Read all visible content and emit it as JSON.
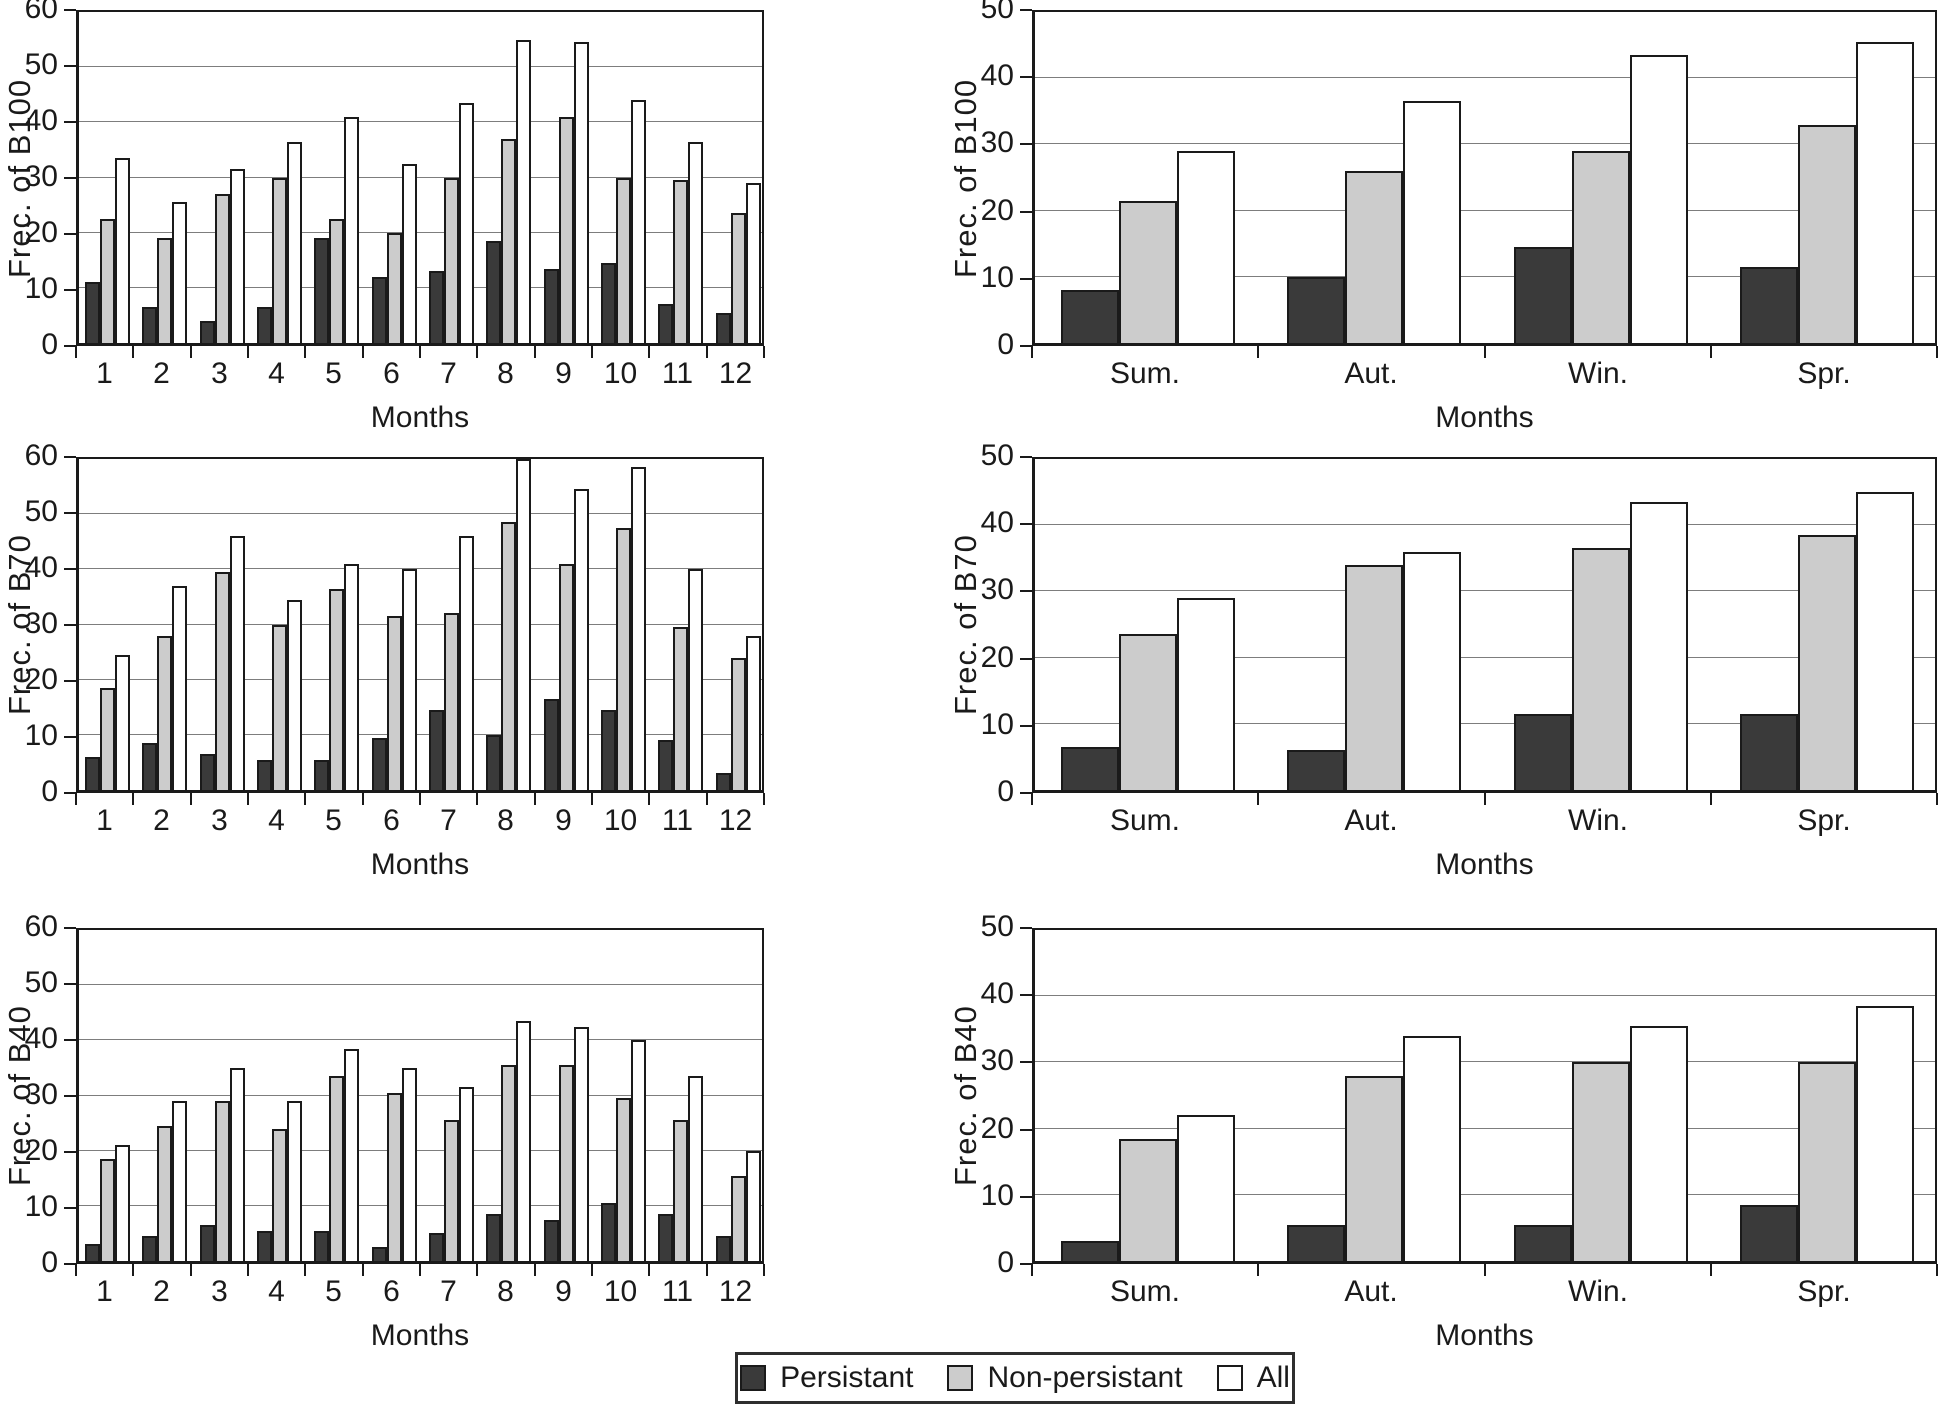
{
  "figure": {
    "x_axis_title": "Months",
    "background": "#ffffff"
  },
  "colors": {
    "persistant": "#3a3a3a",
    "non_persistant": "#cccccc",
    "all": "#ffffff",
    "bar_outline": "#1a1a1a",
    "gridline": "#7d7d7d",
    "axis": "#1a1a1a",
    "text": "#1a1a1a"
  },
  "legend": {
    "position": "bottom-center",
    "items": [
      {
        "label": "Persistant",
        "swatch": "#3a3a3a"
      },
      {
        "label": "Non-persistant",
        "swatch": "#cccccc"
      },
      {
        "label": "All",
        "swatch": "#ffffff"
      }
    ]
  },
  "chart_data": [
    {
      "id": "b100-monthly",
      "type": "bar",
      "title": "",
      "ylabel": "Frec. of B100",
      "xlabel": "Months",
      "ylim": [
        0,
        60
      ],
      "yticks": [
        0,
        10,
        20,
        30,
        40,
        50,
        60
      ],
      "grid": true,
      "categories": [
        "1",
        "2",
        "3",
        "4",
        "5",
        "6",
        "7",
        "8",
        "9",
        "10",
        "11",
        "12"
      ],
      "series": [
        {
          "name": "Persistant",
          "values": [
            11,
            6.5,
            4,
            6.5,
            19,
            12,
            13,
            18.5,
            13.5,
            14.5,
            7,
            5.5
          ]
        },
        {
          "name": "Non-persistant",
          "values": [
            22.5,
            19,
            27,
            30,
            22.5,
            20,
            30,
            37,
            41,
            30,
            29.5,
            23.5
          ]
        },
        {
          "name": "All",
          "values": [
            33.5,
            25.5,
            31.5,
            36.5,
            41,
            32.5,
            43.5,
            55,
            54.5,
            44,
            36.5,
            29
          ]
        }
      ]
    },
    {
      "id": "b100-seasonal",
      "type": "bar",
      "title": "",
      "ylabel": "Frec. of B100",
      "xlabel": "Months",
      "ylim": [
        0,
        50
      ],
      "yticks": [
        0,
        10,
        20,
        30,
        40,
        50
      ],
      "grid": true,
      "categories": [
        "Sum.",
        "Aut.",
        "Win.",
        "Spr."
      ],
      "series": [
        {
          "name": "Persistant",
          "values": [
            8,
            10,
            14.5,
            11.5
          ]
        },
        {
          "name": "Non-persistant",
          "values": [
            21.5,
            26,
            29,
            33
          ]
        },
        {
          "name": "All",
          "values": [
            29,
            36.5,
            43.5,
            45.5
          ]
        }
      ]
    },
    {
      "id": "b70-monthly",
      "type": "bar",
      "title": "",
      "ylabel": "Frec. of B70",
      "xlabel": "Months",
      "ylim": [
        0,
        60
      ],
      "yticks": [
        0,
        10,
        20,
        30,
        40,
        50,
        60
      ],
      "grid": true,
      "categories": [
        "1",
        "2",
        "3",
        "4",
        "5",
        "6",
        "7",
        "8",
        "9",
        "10",
        "11",
        "12"
      ],
      "series": [
        {
          "name": "Persistant",
          "values": [
            6,
            8.5,
            6.5,
            5.5,
            5.5,
            9.5,
            14.5,
            10,
            16.5,
            14.5,
            9,
            3
          ]
        },
        {
          "name": "Non-persistant",
          "values": [
            18.5,
            28,
            39.5,
            30,
            36.5,
            31.5,
            32,
            48.5,
            41,
            47.5,
            29.5,
            24
          ]
        },
        {
          "name": "All",
          "values": [
            24.5,
            37,
            46,
            34.5,
            41,
            40,
            46,
            60,
            54.5,
            58.5,
            40,
            28
          ]
        }
      ]
    },
    {
      "id": "b70-seasonal",
      "type": "bar",
      "title": "",
      "ylabel": "Frec. of B70",
      "xlabel": "Months",
      "ylim": [
        0,
        50
      ],
      "yticks": [
        0,
        10,
        20,
        30,
        40,
        50
      ],
      "grid": true,
      "categories": [
        "Sum.",
        "Aut.",
        "Win.",
        "Spr."
      ],
      "series": [
        {
          "name": "Persistant",
          "values": [
            6.5,
            6,
            11.5,
            11.5
          ]
        },
        {
          "name": "Non-persistant",
          "values": [
            23.5,
            34,
            36.5,
            38.5
          ]
        },
        {
          "name": "All",
          "values": [
            29,
            36,
            43.5,
            45
          ]
        }
      ]
    },
    {
      "id": "b40-monthly",
      "type": "bar",
      "title": "",
      "ylabel": "Frec. of B40",
      "xlabel": "Months",
      "ylim": [
        0,
        60
      ],
      "yticks": [
        0,
        10,
        20,
        30,
        40,
        50,
        60
      ],
      "grid": true,
      "categories": [
        "1",
        "2",
        "3",
        "4",
        "5",
        "6",
        "7",
        "8",
        "9",
        "10",
        "11",
        "12"
      ],
      "series": [
        {
          "name": "Persistant",
          "values": [
            3,
            4.5,
            6.5,
            5.5,
            5.5,
            2.5,
            5,
            8.5,
            7.5,
            10.5,
            8.5,
            4.5
          ]
        },
        {
          "name": "Non-persistant",
          "values": [
            18.5,
            24.5,
            29,
            24,
            33.5,
            30.5,
            25.5,
            35.5,
            35.5,
            29.5,
            25.5,
            15.5
          ]
        },
        {
          "name": "All",
          "values": [
            21,
            29,
            35,
            29,
            38.5,
            35,
            31.5,
            43.5,
            42.5,
            40,
            33.5,
            20
          ]
        }
      ]
    },
    {
      "id": "b40-seasonal",
      "type": "bar",
      "title": "",
      "ylabel": "Frec. of B40",
      "xlabel": "Months",
      "ylim": [
        0,
        50
      ],
      "yticks": [
        0,
        10,
        20,
        30,
        40,
        50
      ],
      "grid": true,
      "categories": [
        "Sum.",
        "Aut.",
        "Win.",
        "Spr."
      ],
      "series": [
        {
          "name": "Persistant",
          "values": [
            3,
            5.5,
            5.5,
            8.5
          ]
        },
        {
          "name": "Non-persistant",
          "values": [
            18.5,
            28,
            30,
            30
          ]
        },
        {
          "name": "All",
          "values": [
            22,
            34,
            35.5,
            38.5
          ]
        }
      ]
    }
  ]
}
